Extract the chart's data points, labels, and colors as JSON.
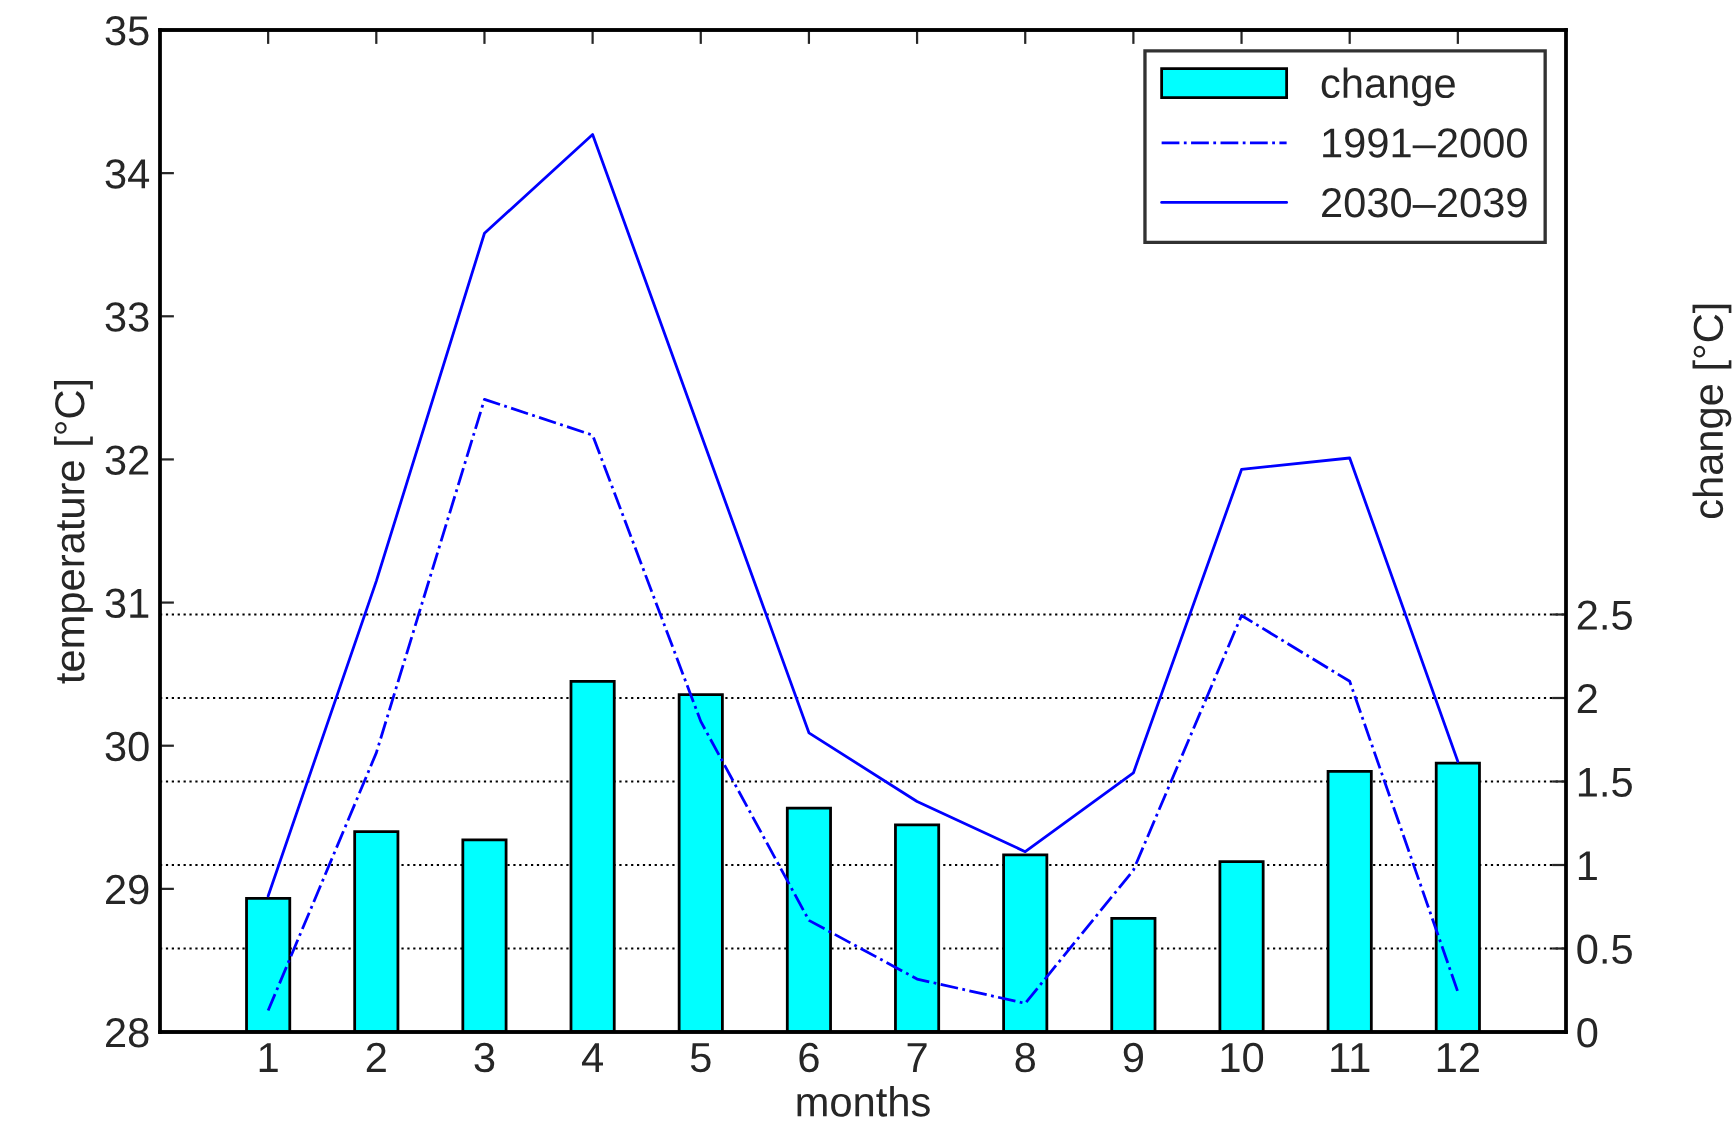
{
  "chart_data": {
    "type": "line",
    "xlabel": "months",
    "ylabel": "temperature [°C]",
    "y2label": "change [°C]",
    "x": [
      1,
      2,
      3,
      4,
      5,
      6,
      7,
      8,
      9,
      10,
      11,
      12
    ],
    "xlim": [
      0,
      13
    ],
    "xticks": [
      1,
      2,
      3,
      4,
      5,
      6,
      7,
      8,
      9,
      10,
      11,
      12
    ],
    "ylim": [
      28,
      35
    ],
    "yticks": [
      28,
      29,
      30,
      31,
      32,
      33,
      34,
      35
    ],
    "y2lim": [
      0,
      6
    ],
    "y2ticks": [
      0,
      0.5,
      1,
      1.5,
      2,
      2.5
    ],
    "grid": "y2",
    "legend": "top right",
    "series": [
      {
        "name": "change",
        "type": "bar",
        "axis": "y2",
        "color": "#00ffff",
        "values": [
          0.8,
          1.2,
          1.15,
          2.1,
          2.02,
          1.34,
          1.24,
          1.06,
          0.68,
          1.02,
          1.56,
          1.61
        ]
      },
      {
        "name": "1991–2000",
        "color": "#0000ff",
        "line_style": "dashdot",
        "values": [
          28.15,
          29.95,
          32.42,
          32.17,
          30.17,
          28.78,
          28.37,
          28.2,
          29.13,
          30.91,
          30.45,
          28.28
        ]
      },
      {
        "name": "2030–2039",
        "color": "#0000ff",
        "line_style": "solid",
        "values": [
          28.95,
          31.15,
          33.58,
          34.27,
          32.18,
          30.09,
          29.61,
          29.26,
          29.81,
          31.93,
          32.01,
          29.89
        ]
      }
    ]
  }
}
